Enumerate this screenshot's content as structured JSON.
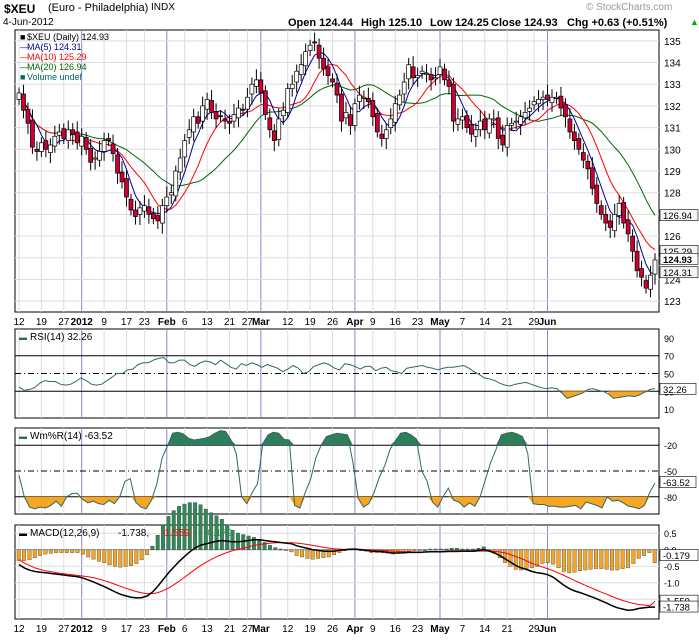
{
  "header": {
    "symbol": "$XEU",
    "description": "(Euro - Philadelphia)",
    "exchange": "INDX",
    "date": "4-Jun-2012",
    "watermark": "© StockCharts.com",
    "open": "Open 124.44",
    "high": "High 125.10",
    "low": "Low 124.25",
    "close": "Close 124.93",
    "change": "Chg +0.63 (+0.51%)",
    "change_arrow": "▲"
  },
  "colors": {
    "up_body": "#ffffff",
    "down_body": "#cc0033",
    "ma5": "#000099",
    "ma10": "#ff0000",
    "ma20": "#006600",
    "volume": "#006666",
    "rsi_line": "#336666",
    "oversold_fill": "#f5a623",
    "overbought_fill": "#2e7d5b",
    "macd_line": "#000000",
    "signal_line": "#ff0000",
    "histogram": "#2e8b57"
  },
  "chart_data": [
    {
      "id": "price",
      "type": "candlestick",
      "legend": [
        {
          "label": "$XEU (Daily) 124.93",
          "marker": "■"
        },
        {
          "label": "MA(5) 124.31",
          "marker": "—"
        },
        {
          "label": "MA(10) 125.29",
          "marker": "—"
        },
        {
          "label": "MA(20) 126.94",
          "marker": "—"
        },
        {
          "label": "Volume undef",
          "marker": "■"
        }
      ],
      "ylim": [
        122.5,
        135.5
      ],
      "y_ticks": [
        123,
        124,
        125,
        126,
        127,
        128,
        129,
        130,
        131,
        132,
        133,
        134,
        135
      ],
      "value_tags": [
        {
          "label": "126.94",
          "value": 126.94
        },
        {
          "label": "125.29",
          "value": 125.29
        },
        {
          "label": "124.93",
          "value": 124.93,
          "highlight": true
        },
        {
          "label": "124.31",
          "value": 124.31
        }
      ],
      "closes": [
        132.6,
        131.8,
        131.2,
        130.1,
        129.9,
        130.3,
        130.0,
        130.2,
        130.6,
        130.8,
        130.5,
        130.9,
        130.7,
        130.3,
        130.6,
        130.0,
        129.4,
        129.6,
        129.9,
        130.4,
        130.4,
        129.8,
        128.9,
        128.5,
        127.8,
        127.2,
        126.9,
        127.3,
        127.4,
        127.0,
        126.8,
        126.7,
        127.4,
        127.8,
        128.0,
        129.0,
        129.6,
        130.4,
        130.9,
        131.5,
        131.2,
        132.0,
        132.3,
        131.7,
        131.4,
        131.5,
        131.3,
        131.2,
        131.6,
        131.9,
        131.8,
        132.4,
        133.0,
        133.2,
        132.6,
        131.6,
        130.9,
        130.4,
        131.4,
        131.8,
        132.8,
        133.0,
        133.6,
        133.9,
        134.5,
        134.8,
        134.9,
        134.2,
        133.7,
        133.4,
        133.1,
        132.5,
        131.3,
        131.7,
        131.1,
        132.1,
        132.5,
        132.4,
        132.2,
        131.5,
        130.8,
        130.5,
        130.9,
        131.4,
        132.1,
        132.5,
        133.1,
        133.9,
        133.3,
        133.4,
        133.6,
        133.5,
        133.2,
        133.3,
        133.8,
        133.2,
        132.9,
        131.3,
        131.4,
        131.5,
        131.0,
        130.7,
        130.9,
        131.3,
        130.9,
        131.4,
        131.4,
        130.5,
        130.2,
        131.1,
        131.2,
        131.3,
        131.5,
        131.7,
        131.9,
        132.2,
        132.3,
        132.4,
        132.3,
        132.4,
        132.4,
        131.9,
        131.5,
        130.8,
        130.4,
        130.0,
        129.5,
        129.1,
        128.2,
        127.5,
        127.0,
        126.6,
        126.4,
        127.0,
        127.5,
        126.6,
        126.1,
        125.3,
        124.4,
        124.1,
        123.6,
        124.2,
        124.9
      ]
    },
    {
      "id": "rsi",
      "type": "line",
      "legend": "RSI(14) 32.26",
      "ylim": [
        0,
        100
      ],
      "y_ticks": [
        10,
        30,
        50,
        70,
        90
      ],
      "lines": [
        30,
        50,
        70
      ],
      "value_tags": [
        {
          "label": "32.26",
          "value": 32.26,
          "highlight": true
        }
      ],
      "values": [
        35,
        31,
        32,
        34,
        39,
        42,
        41,
        41,
        38,
        37,
        38,
        41,
        45,
        42,
        38,
        37,
        38,
        42,
        46,
        50,
        50,
        54,
        55,
        60,
        62,
        62,
        65,
        67,
        68,
        62,
        62,
        65,
        65,
        60,
        58,
        62,
        64,
        63,
        60,
        65,
        61,
        57,
        55,
        61,
        59,
        62,
        60,
        57,
        60,
        58,
        56,
        52,
        55,
        59,
        56,
        50,
        52,
        58,
        60,
        62,
        60,
        56,
        54,
        61,
        60,
        58,
        55,
        58,
        58,
        53,
        56,
        57,
        53,
        52,
        50,
        56,
        57,
        58,
        59,
        57,
        56,
        54,
        56,
        57,
        57,
        58,
        59,
        56,
        52,
        49,
        45,
        44,
        42,
        39,
        37,
        36,
        38,
        39,
        40,
        38,
        36,
        34,
        33,
        34,
        33,
        28,
        22,
        24,
        26,
        28,
        32,
        33,
        31,
        30,
        27,
        22,
        23,
        24,
        25,
        24,
        26,
        29,
        32,
        33
      ]
    },
    {
      "id": "williams",
      "type": "line",
      "legend": "Wm%R(14) -63.52",
      "ylim": [
        -100,
        0
      ],
      "y_ticks": [
        -20,
        -50,
        -80
      ],
      "lines": [
        -20,
        -50,
        -80
      ],
      "value_tags": [
        {
          "label": "-63.52",
          "value": -63.52,
          "highlight": true
        }
      ],
      "values": [
        -55,
        -80,
        -92,
        -94,
        -92,
        -93,
        -90,
        -85,
        -91,
        -80,
        -76,
        -76,
        -83,
        -87,
        -85,
        -88,
        -89,
        -84,
        -88,
        -80,
        -62,
        -59,
        -86,
        -92,
        -94,
        -84,
        -65,
        -35,
        -21,
        -6,
        -5,
        -7,
        -12,
        -14,
        -13,
        -12,
        -10,
        -6,
        -3,
        -4,
        -14,
        -30,
        -80,
        -88,
        -75,
        -65,
        -18,
        -8,
        -5,
        -6,
        -13,
        -14,
        -90,
        -93,
        -75,
        -60,
        -35,
        -20,
        -10,
        -8,
        -6,
        -7,
        -8,
        -40,
        -82,
        -92,
        -88,
        -75,
        -57,
        -44,
        -25,
        -15,
        -6,
        -5,
        -8,
        -13,
        -50,
        -62,
        -86,
        -92,
        -80,
        -70,
        -84,
        -86,
        -92,
        -87,
        -91,
        -80,
        -60,
        -40,
        -25,
        -8,
        -6,
        -5,
        -7,
        -10,
        -30,
        -88,
        -89,
        -89,
        -91,
        -91,
        -92,
        -92,
        -91,
        -90,
        -94,
        -86,
        -88,
        -90,
        -93,
        -80,
        -85,
        -84,
        -87,
        -91,
        -92,
        -94,
        -90,
        -75,
        -64
      ]
    },
    {
      "id": "macd",
      "type": "line",
      "legend": {
        "prefix": "MACD(12,26,9)",
        "macd": "-1.738,",
        "signal": "-1.559,",
        "hist": "-0.179"
      },
      "ylim": [
        -2.1,
        0.75
      ],
      "y_ticks": [
        0.5,
        0.0,
        -0.5,
        -1.0,
        -1.5
      ],
      "tick_labels": [
        "0.5",
        "0.0",
        "-0.5",
        "-1.0",
        "-1.5"
      ],
      "value_tags": [
        {
          "label": "-0.179",
          "value": -0.179
        },
        {
          "label": "-1.559",
          "value": -1.559
        },
        {
          "label": "-1.738",
          "value": -1.738,
          "highlight": true
        }
      ],
      "macd": [
        -0.45,
        -0.55,
        -0.62,
        -0.66,
        -0.68,
        -0.7,
        -0.72,
        -0.74,
        -0.76,
        -0.78,
        -0.8,
        -0.82,
        -0.86,
        -0.92,
        -0.98,
        -1.05,
        -1.12,
        -1.2,
        -1.28,
        -1.35,
        -1.4,
        -1.44,
        -1.46,
        -1.45,
        -1.4,
        -1.28,
        -1.1,
        -0.9,
        -0.7,
        -0.52,
        -0.35,
        -0.2,
        -0.06,
        0.06,
        0.14,
        0.18,
        0.22,
        0.26,
        0.28,
        0.26,
        0.24,
        0.24,
        0.26,
        0.28,
        0.3,
        0.3,
        0.28,
        0.26,
        0.24,
        0.22,
        0.2,
        0.18,
        0.12,
        0.08,
        0.04,
        0.0,
        -0.02,
        -0.04,
        -0.05,
        -0.04,
        -0.02,
        0.0,
        0.02,
        0.02,
        0.0,
        -0.02,
        -0.04,
        -0.05,
        -0.06,
        -0.08,
        -0.1,
        -0.1,
        -0.09,
        -0.08,
        -0.08,
        -0.08,
        -0.07,
        -0.06,
        -0.06,
        -0.06,
        -0.05,
        -0.04,
        -0.04,
        -0.04,
        -0.04,
        -0.04,
        -0.02,
        0.0,
        -0.04,
        -0.1,
        -0.18,
        -0.28,
        -0.38,
        -0.48,
        -0.55,
        -0.6,
        -0.66,
        -0.7,
        -0.72,
        -0.76,
        -0.84,
        -0.96,
        -1.08,
        -1.18,
        -1.25,
        -1.3,
        -1.36,
        -1.42,
        -1.48,
        -1.55,
        -1.62,
        -1.7,
        -1.76,
        -1.8,
        -1.84,
        -1.82,
        -1.78,
        -1.76,
        -1.74,
        -1.74
      ],
      "signal": [
        -0.3,
        -0.4,
        -0.48,
        -0.55,
        -0.6,
        -0.64,
        -0.67,
        -0.7,
        -0.72,
        -0.74,
        -0.76,
        -0.78,
        -0.8,
        -0.82,
        -0.85,
        -0.89,
        -0.94,
        -0.99,
        -1.05,
        -1.11,
        -1.17,
        -1.22,
        -1.27,
        -1.31,
        -1.33,
        -1.33,
        -1.3,
        -1.24,
        -1.16,
        -1.06,
        -0.95,
        -0.83,
        -0.71,
        -0.59,
        -0.48,
        -0.38,
        -0.29,
        -0.21,
        -0.14,
        -0.08,
        -0.03,
        0.01,
        0.05,
        0.09,
        0.13,
        0.16,
        0.18,
        0.2,
        0.21,
        0.21,
        0.21,
        0.21,
        0.2,
        0.18,
        0.16,
        0.13,
        0.1,
        0.07,
        0.05,
        0.03,
        0.02,
        0.01,
        0.01,
        0.01,
        0.01,
        0.0,
        0.0,
        -0.01,
        -0.02,
        -0.03,
        -0.04,
        -0.05,
        -0.06,
        -0.06,
        -0.07,
        -0.07,
        -0.07,
        -0.07,
        -0.07,
        -0.07,
        -0.06,
        -0.06,
        -0.06,
        -0.05,
        -0.05,
        -0.05,
        -0.04,
        -0.04,
        -0.04,
        -0.05,
        -0.07,
        -0.1,
        -0.15,
        -0.21,
        -0.27,
        -0.34,
        -0.41,
        -0.47,
        -0.53,
        -0.58,
        -0.64,
        -0.71,
        -0.78,
        -0.86,
        -0.94,
        -1.01,
        -1.08,
        -1.15,
        -1.22,
        -1.29,
        -1.35,
        -1.42,
        -1.48,
        -1.54,
        -1.59,
        -1.63,
        -1.66,
        -1.68,
        -1.7,
        -1.56
      ]
    }
  ],
  "x_axis": {
    "labels": [
      {
        "t": "12",
        "i": 0
      },
      {
        "t": "19",
        "i": 5
      },
      {
        "t": "27",
        "i": 10
      },
      {
        "t": "2012",
        "i": 14,
        "bold": true
      },
      {
        "t": "9",
        "i": 19
      },
      {
        "t": "17",
        "i": 24
      },
      {
        "t": "23",
        "i": 28
      },
      {
        "t": "Feb",
        "i": 33,
        "bold": true
      },
      {
        "t": "6",
        "i": 37
      },
      {
        "t": "13",
        "i": 42
      },
      {
        "t": "21",
        "i": 47
      },
      {
        "t": "27",
        "i": 51
      },
      {
        "t": "Mar",
        "i": 54,
        "bold": true
      },
      {
        "t": "12",
        "i": 60
      },
      {
        "t": "19",
        "i": 65
      },
      {
        "t": "26",
        "i": 70
      },
      {
        "t": "Apr",
        "i": 75,
        "bold": true
      },
      {
        "t": "9",
        "i": 79
      },
      {
        "t": "16",
        "i": 84
      },
      {
        "t": "23",
        "i": 89
      },
      {
        "t": "May",
        "i": 94,
        "bold": true
      },
      {
        "t": "7",
        "i": 99
      },
      {
        "t": "14",
        "i": 104
      },
      {
        "t": "21",
        "i": 109
      },
      {
        "t": "29",
        "i": 115
      },
      {
        "t": "Jun",
        "i": 118,
        "bold": true
      }
    ],
    "month_lines": [
      14,
      33,
      54,
      75,
      94,
      118
    ]
  }
}
